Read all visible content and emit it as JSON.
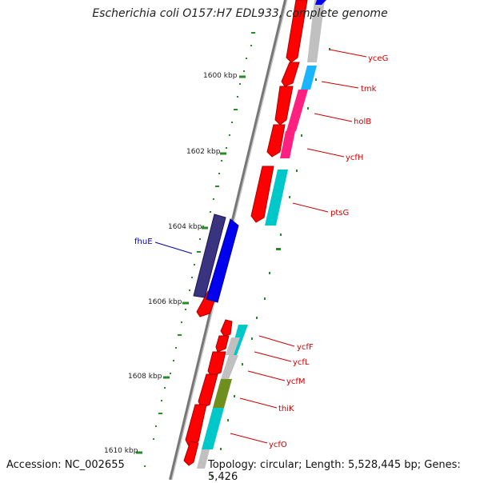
{
  "title": "Escherichia coli O157:H7 EDL933, complete genome",
  "accession": "Accession: NC_002655",
  "topology": "Topology: circular; Length: 5,528,445 bp; Genes: 5,426",
  "colors": {
    "backbone": "#888888",
    "tick": "#2a8a2a",
    "cds_red": "#ff0000",
    "cds_blue": "#0000ee",
    "cds_navy": "#3a3480",
    "gene_label_red": "#cc0000",
    "gene_label_blue": "#0000aa"
  },
  "kbp_labels": [
    "1600 kbp",
    "1602 kbp",
    "1604 kbp",
    "1606 kbp",
    "1608 kbp",
    "1610 kbp"
  ],
  "gene_labels": [
    {
      "name": "yceG",
      "color": "red"
    },
    {
      "name": "tmk",
      "color": "red"
    },
    {
      "name": "holB",
      "color": "red"
    },
    {
      "name": "ycfH",
      "color": "red"
    },
    {
      "name": "ptsG",
      "color": "red"
    },
    {
      "name": "fhuE",
      "color": "blue"
    },
    {
      "name": "ycfF",
      "color": "red"
    },
    {
      "name": "ycfL",
      "color": "red"
    },
    {
      "name": "ycfM",
      "color": "red"
    },
    {
      "name": "thiK",
      "color": "red"
    },
    {
      "name": "ycfO",
      "color": "red"
    }
  ]
}
